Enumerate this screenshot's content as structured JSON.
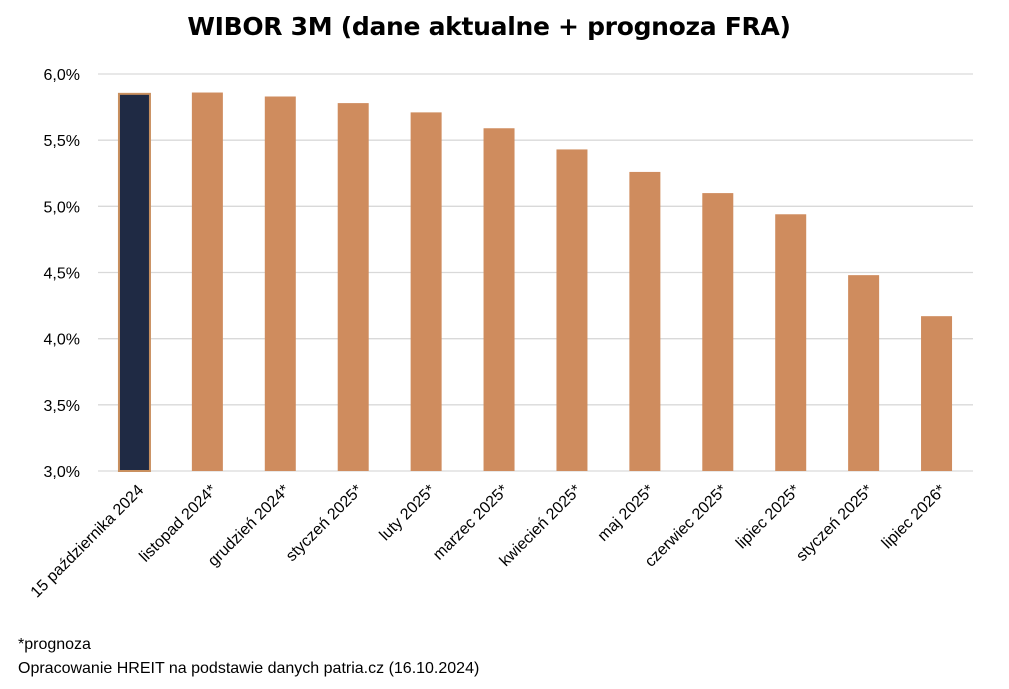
{
  "chart_data": {
    "type": "bar",
    "title": "WIBOR 3M (dane aktualne + prognoza FRA)",
    "xlabel": "",
    "ylabel": "",
    "categories": [
      "15 października 2024",
      "listopad 2024*",
      "grudzień 2024*",
      "styczeń 2025*",
      "luty 2025*",
      "marzec 2025*",
      "kwiecień 2025*",
      "maj 2025*",
      "czerwiec 2025*",
      "lipiec 2025*",
      "styczeń 2025*",
      "lipiec 2026*"
    ],
    "values": [
      5.85,
      5.86,
      5.83,
      5.78,
      5.71,
      5.59,
      5.43,
      5.26,
      5.1,
      4.94,
      4.48,
      4.17
    ],
    "ylim": [
      3.0,
      6.0
    ],
    "yticks": [
      3.0,
      3.5,
      4.0,
      4.5,
      5.0,
      5.5,
      6.0
    ],
    "ytick_labels": [
      "3,0%",
      "3,5%",
      "4,0%",
      "4,5%",
      "5,0%",
      "5,5%",
      "6,0%"
    ],
    "grid": true,
    "legend": "none",
    "colors": {
      "actual": "#1f2a44",
      "actual_outline": "#c9905f",
      "forecast": "#cf8c5e",
      "gridline": "#d9d9d9"
    }
  },
  "footnote": "*prognoza",
  "source": "Opracowanie HREIT na podstawie danych patria.cz (16.10.2024)"
}
